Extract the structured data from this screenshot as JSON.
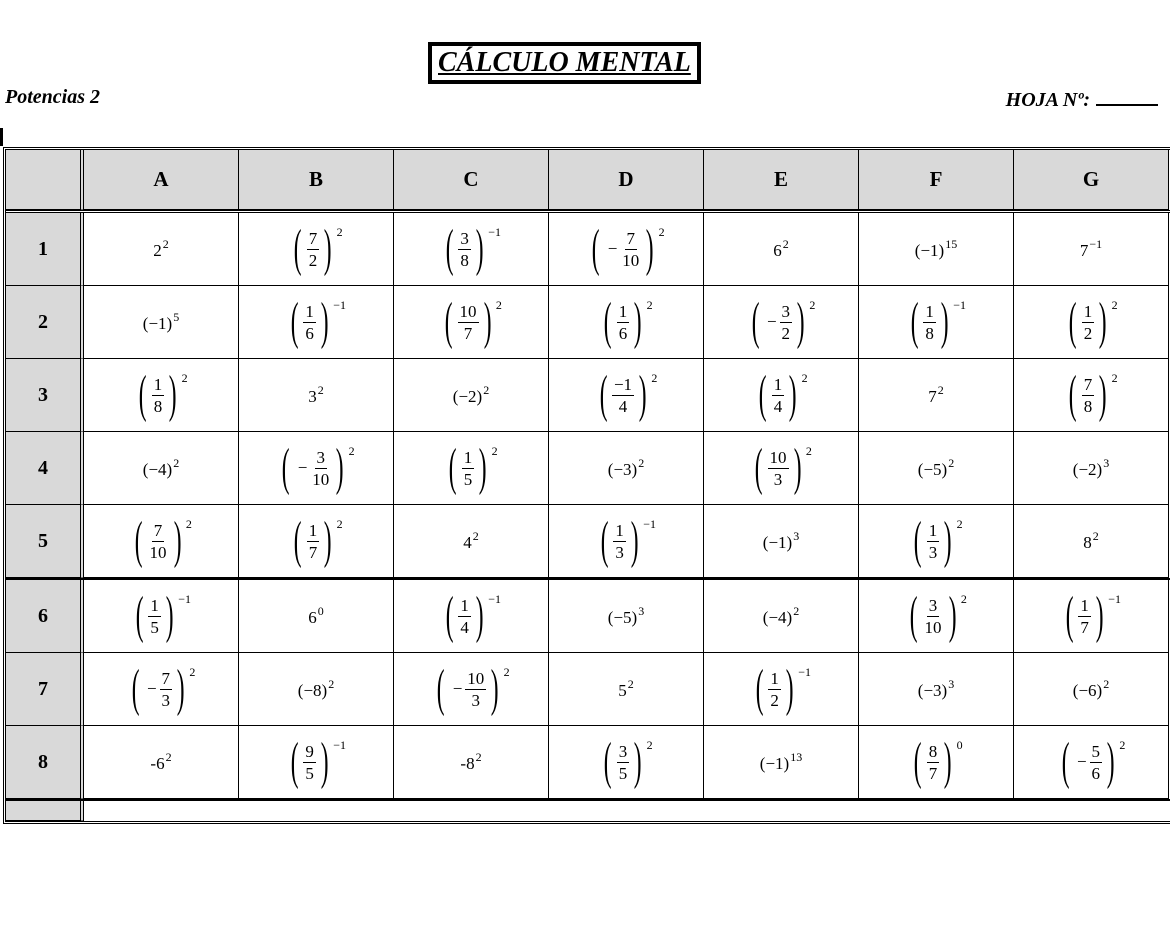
{
  "title": "CÁLCULO MENTAL",
  "subtitle": "Potencias 2",
  "sheet_label": "HOJA Nº:",
  "columns": [
    "",
    "A",
    "B",
    "C",
    "D",
    "E",
    "F",
    "G"
  ],
  "rows": [
    {
      "label": "1",
      "cells": [
        {
          "base": "2",
          "exp": "2"
        },
        {
          "num": "7",
          "den": "2",
          "exp": "2"
        },
        {
          "num": "3",
          "den": "8",
          "exp": "−1"
        },
        {
          "neg": true,
          "num": "7",
          "den": "10",
          "exp": "2"
        },
        {
          "base": "6",
          "exp": "2"
        },
        {
          "base": "(−1)",
          "exp": "15"
        },
        {
          "base": "7",
          "exp": "−1"
        }
      ]
    },
    {
      "label": "2",
      "cells": [
        {
          "base": "(−1)",
          "exp": "5"
        },
        {
          "num": "1",
          "den": "6",
          "exp": "−1"
        },
        {
          "num": "10",
          "den": "7",
          "exp": "2"
        },
        {
          "num": "1",
          "den": "6",
          "exp": "2"
        },
        {
          "neg": true,
          "num": "3",
          "den": "2",
          "exp": "2"
        },
        {
          "num": "1",
          "den": "8",
          "exp": "−1"
        },
        {
          "num": "1",
          "den": "2",
          "exp": "2"
        }
      ]
    },
    {
      "label": "3",
      "cells": [
        {
          "num": "1",
          "den": "8",
          "exp": "2"
        },
        {
          "base": "3",
          "exp": "2"
        },
        {
          "base": "(−2)",
          "exp": "2"
        },
        {
          "num": "−1",
          "den": "4",
          "exp": "2"
        },
        {
          "num": "1",
          "den": "4",
          "exp": "2"
        },
        {
          "base": "7",
          "exp": "2"
        },
        {
          "num": "7",
          "den": "8",
          "exp": "2"
        }
      ]
    },
    {
      "label": "4",
      "cells": [
        {
          "base": "(−4)",
          "exp": "2"
        },
        {
          "neg": true,
          "num": "3",
          "den": "10",
          "exp": "2"
        },
        {
          "num": "1",
          "den": "5",
          "exp": "2"
        },
        {
          "base": "(−3)",
          "exp": "2"
        },
        {
          "num": "10",
          "den": "3",
          "exp": "2"
        },
        {
          "base": "(−5)",
          "exp": "2"
        },
        {
          "base": "(−2)",
          "exp": "3"
        }
      ]
    },
    {
      "label": "5",
      "cells": [
        {
          "num": "7",
          "den": "10",
          "exp": "2"
        },
        {
          "num": "1",
          "den": "7",
          "exp": "2"
        },
        {
          "base": "4",
          "exp": "2"
        },
        {
          "num": "1",
          "den": "3",
          "exp": "−1"
        },
        {
          "base": "(−1)",
          "exp": "3"
        },
        {
          "num": "1",
          "den": "3",
          "exp": "2"
        },
        {
          "base": "8",
          "exp": "2"
        }
      ]
    },
    {
      "label": "6",
      "cells": [
        {
          "num": "1",
          "den": "5",
          "exp": "−1"
        },
        {
          "base": "6",
          "exp": "0"
        },
        {
          "num": "1",
          "den": "4",
          "exp": "−1"
        },
        {
          "base": "(−5)",
          "exp": "3"
        },
        {
          "base": "(−4)",
          "exp": "2"
        },
        {
          "num": "3",
          "den": "10",
          "exp": "2"
        },
        {
          "num": "1",
          "den": "7",
          "exp": "−1"
        }
      ]
    },
    {
      "label": "7",
      "cells": [
        {
          "neg": true,
          "num": "7",
          "den": "3",
          "exp": "2"
        },
        {
          "base": "(−8)",
          "exp": "2"
        },
        {
          "neg": true,
          "num": "10",
          "den": "3",
          "exp": "2"
        },
        {
          "base": "5",
          "exp": "2"
        },
        {
          "num": "1",
          "den": "2",
          "exp": "−1"
        },
        {
          "base": "(−3)",
          "exp": "3"
        },
        {
          "base": "(−6)",
          "exp": "2"
        }
      ]
    },
    {
      "label": "8",
      "cells": [
        {
          "base": "-6",
          "exp": "2"
        },
        {
          "num": "9",
          "den": "5",
          "exp": "−1"
        },
        {
          "base": "-8",
          "exp": "2"
        },
        {
          "num": "3",
          "den": "5",
          "exp": "2"
        },
        {
          "base": "(−1)",
          "exp": "13"
        },
        {
          "num": "8",
          "den": "7",
          "exp": "0"
        },
        {
          "neg": true,
          "num": "5",
          "den": "6",
          "exp": "2"
        }
      ]
    }
  ]
}
